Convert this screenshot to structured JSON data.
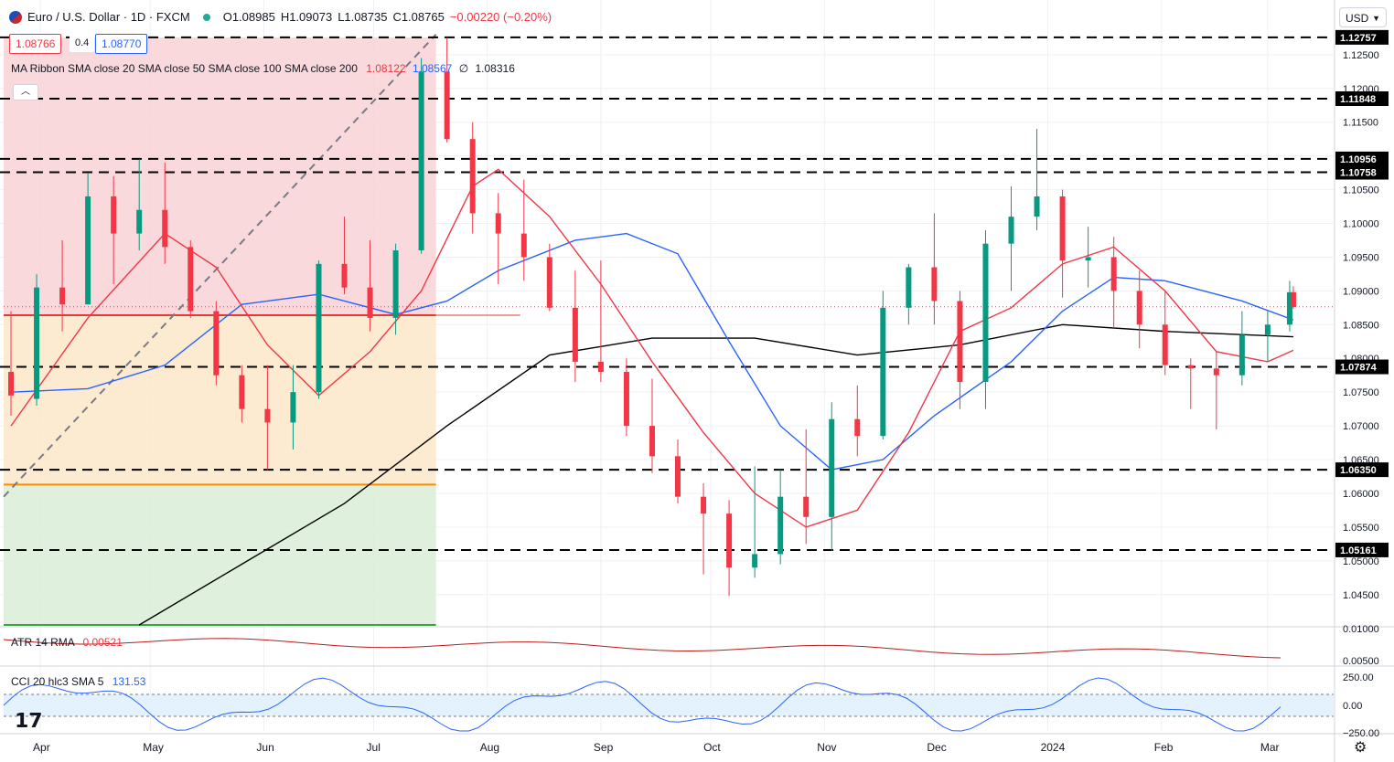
{
  "header": {
    "symbol": "Euro / U.S. Dollar · 1D · FXCM",
    "open": "O1.08985",
    "high": "H1.09073",
    "low": "L1.08735",
    "close": "C1.08765",
    "change": "−0.00220 (−0.20%)"
  },
  "quote": {
    "bid": "1.08766",
    "spread": "0.4",
    "ask": "1.08770"
  },
  "ma_ribbon": {
    "label": "MA Ribbon SMA close 20 SMA close 50 SMA close 100 SMA close 200",
    "v20": "1.08122",
    "v50": "1.08567",
    "v100": "∅",
    "v200": "1.08316"
  },
  "atr": {
    "label": "ATR 14 RMA",
    "value": "0.00521"
  },
  "cci": {
    "label": "CCI 20 hlc3 SMA 5",
    "value": "131.53"
  },
  "currency": "USD",
  "colors": {
    "up": "#089981",
    "down": "#f23645",
    "sma20": "#f23645",
    "sma50": "#2962ff",
    "sma200": "#000000"
  },
  "chart_data": {
    "type": "candlestick",
    "title": "Euro / U.S. Dollar · 1D · FXCM",
    "price_axis": {
      "ticks": [
        "1.12500",
        "1.12000",
        "1.11500",
        "1.11000",
        "1.10500",
        "1.10000",
        "1.09500",
        "1.09000",
        "1.08500",
        "1.08000",
        "1.07500",
        "1.07000",
        "1.06500",
        "1.06000",
        "1.05500",
        "1.05000",
        "1.04500"
      ],
      "range": [
        1.0405,
        1.1285
      ]
    },
    "x_axis": {
      "labels": [
        "Apr",
        "May",
        "Jun",
        "Jul",
        "Aug",
        "Sep",
        "Oct",
        "Nov",
        "Dec",
        "2024",
        "Feb",
        "Mar"
      ],
      "dates": [
        "2023-04-01",
        "2023-05-01",
        "2023-06-01",
        "2023-07-01",
        "2023-08-01",
        "2023-09-01",
        "2023-10-01",
        "2023-11-01",
        "2023-12-01",
        "2024-01-01",
        "2024-02-01",
        "2024-03-01"
      ],
      "range": [
        "2023-03-22",
        "2024-03-19"
      ]
    },
    "horizontal_levels": [
      {
        "value": 1.12757,
        "label": "1.12757"
      },
      {
        "value": 1.11848,
        "label": "1.11848"
      },
      {
        "value": 1.10956,
        "label": "1.10956"
      },
      {
        "value": 1.10758,
        "label": "1.10758"
      },
      {
        "value": 1.07874,
        "label": "1.07874"
      },
      {
        "value": 1.0635,
        "label": "1.06350"
      },
      {
        "value": 1.05161,
        "label": "1.05161"
      }
    ],
    "last_price": 1.08765,
    "fibonacci": {
      "start_date": "2023-03-22",
      "end_date": "2023-07-18",
      "low": 1.0628,
      "high": 1.12757,
      "levels": [
        {
          "value": 1.12757,
          "fill": "#f8d2d6"
        },
        {
          "value": 1.0864,
          "fill": "#fde8c9",
          "line": "#e53935"
        },
        {
          "value": 1.0613,
          "fill": "#d9efd6",
          "line": "#fb8c00"
        },
        {
          "value": 1.0405,
          "line": "#43a047"
        }
      ]
    },
    "trend_line": [
      [
        "2023-03-22",
        1.0595
      ],
      [
        "2023-07-18",
        1.128
      ]
    ],
    "candles": [
      [
        "2023-03-24",
        1.078,
        1.087,
        1.0715,
        1.0745
      ],
      [
        "2023-03-31",
        1.074,
        1.0925,
        1.073,
        1.0905
      ],
      [
        "2023-04-07",
        1.0905,
        1.0975,
        1.084,
        1.088
      ],
      [
        "2023-04-14",
        1.088,
        1.1075,
        1.088,
        1.104
      ],
      [
        "2023-04-21",
        1.104,
        1.107,
        1.091,
        1.0985
      ],
      [
        "2023-04-28",
        1.0985,
        1.1095,
        1.096,
        1.102
      ],
      [
        "2023-05-05",
        1.102,
        1.109,
        1.094,
        1.0965
      ],
      [
        "2023-05-12",
        1.0965,
        1.0975,
        1.086,
        1.087
      ],
      [
        "2023-05-19",
        1.087,
        1.0885,
        1.076,
        1.0775
      ],
      [
        "2023-05-26",
        1.0775,
        1.079,
        1.0705,
        1.0725
      ],
      [
        "2023-06-02",
        1.0725,
        1.079,
        1.0635,
        1.0705
      ],
      [
        "2023-06-09",
        1.0705,
        1.079,
        1.0665,
        1.075
      ],
      [
        "2023-06-16",
        1.075,
        1.0945,
        1.074,
        1.094
      ],
      [
        "2023-06-23",
        1.094,
        1.101,
        1.0895,
        1.0905
      ],
      [
        "2023-06-30",
        1.0905,
        1.0975,
        1.084,
        1.086
      ],
      [
        "2023-07-07",
        1.086,
        1.097,
        1.0835,
        1.096
      ],
      [
        "2023-07-14",
        1.096,
        1.1245,
        1.0955,
        1.1225
      ],
      [
        "2023-07-21",
        1.1225,
        1.1275,
        1.112,
        1.1125
      ],
      [
        "2023-07-28",
        1.1125,
        1.115,
        1.0985,
        1.1015
      ],
      [
        "2023-08-04",
        1.1015,
        1.1045,
        1.091,
        1.0985
      ],
      [
        "2023-08-11",
        1.0985,
        1.1065,
        1.0915,
        1.095
      ],
      [
        "2023-08-18",
        1.095,
        1.097,
        1.087,
        1.0875
      ],
      [
        "2023-08-25",
        1.0875,
        1.093,
        1.0765,
        1.0795
      ],
      [
        "2023-09-01",
        1.0795,
        1.0945,
        1.0765,
        1.078
      ],
      [
        "2023-09-08",
        1.078,
        1.08,
        1.0685,
        1.07
      ],
      [
        "2023-09-15",
        1.07,
        1.077,
        1.063,
        1.0655
      ],
      [
        "2023-09-22",
        1.0655,
        1.068,
        1.0585,
        1.0595
      ],
      [
        "2023-09-29",
        1.0595,
        1.0615,
        1.048,
        1.057
      ],
      [
        "2023-10-06",
        1.057,
        1.059,
        1.0448,
        1.049
      ],
      [
        "2023-10-13",
        1.049,
        1.064,
        1.0475,
        1.051
      ],
      [
        "2023-10-20",
        1.051,
        1.0635,
        1.0495,
        1.0595
      ],
      [
        "2023-10-27",
        1.0595,
        1.0695,
        1.0525,
        1.0565
      ],
      [
        "2023-11-03",
        1.0565,
        1.0735,
        1.0515,
        1.071
      ],
      [
        "2023-11-10",
        1.071,
        1.076,
        1.0655,
        1.0685
      ],
      [
        "2023-11-17",
        1.0685,
        1.09,
        1.068,
        1.0875
      ],
      [
        "2023-11-24",
        1.0875,
        1.094,
        1.085,
        1.0935
      ],
      [
        "2023-12-01",
        1.0935,
        1.1015,
        1.085,
        1.0885
      ],
      [
        "2023-12-08",
        1.0885,
        1.09,
        1.0725,
        1.0765
      ],
      [
        "2023-12-15",
        1.0765,
        1.099,
        1.0725,
        1.097
      ],
      [
        "2023-12-22",
        1.097,
        1.1055,
        1.09,
        1.101
      ],
      [
        "2023-12-29",
        1.101,
        1.114,
        1.099,
        1.104
      ],
      [
        "2024-01-05",
        1.104,
        1.105,
        1.089,
        1.0945
      ],
      [
        "2024-01-12",
        1.0945,
        1.0995,
        1.0905,
        1.095
      ],
      [
        "2024-01-19",
        1.095,
        1.098,
        1.0845,
        1.09
      ],
      [
        "2024-01-26",
        1.09,
        1.093,
        1.0815,
        1.085
      ],
      [
        "2024-02-02",
        1.085,
        1.09,
        1.0775,
        1.079
      ],
      [
        "2024-02-09",
        1.079,
        1.08,
        1.0725,
        1.0785
      ],
      [
        "2024-02-16",
        1.0785,
        1.081,
        1.0695,
        1.0775
      ],
      [
        "2024-02-23",
        1.0775,
        1.087,
        1.076,
        1.0835
      ],
      [
        "2024-03-01",
        1.0835,
        1.087,
        1.0795,
        1.085
      ],
      [
        "2024-03-07",
        1.085,
        1.0915,
        1.084,
        1.0898
      ],
      [
        "2024-03-08",
        1.0898,
        1.0907,
        1.0873,
        1.0876
      ]
    ],
    "sma20": [
      [
        "2023-03-24",
        1.07
      ],
      [
        "2023-04-14",
        1.086
      ],
      [
        "2023-05-05",
        1.0985
      ],
      [
        "2023-05-19",
        1.0935
      ],
      [
        "2023-06-02",
        1.082
      ],
      [
        "2023-06-16",
        1.0745
      ],
      [
        "2023-06-30",
        1.081
      ],
      [
        "2023-07-14",
        1.09
      ],
      [
        "2023-07-28",
        1.1055
      ],
      [
        "2023-08-04",
        1.108
      ],
      [
        "2023-08-18",
        1.101
      ],
      [
        "2023-09-01",
        1.091
      ],
      [
        "2023-09-15",
        1.0795
      ],
      [
        "2023-09-29",
        1.069
      ],
      [
        "2023-10-13",
        1.06
      ],
      [
        "2023-10-27",
        1.055
      ],
      [
        "2023-11-10",
        1.0575
      ],
      [
        "2023-11-24",
        1.069
      ],
      [
        "2023-12-08",
        1.084
      ],
      [
        "2023-12-22",
        1.0875
      ],
      [
        "2024-01-05",
        1.094
      ],
      [
        "2024-01-19",
        1.0965
      ],
      [
        "2024-02-02",
        1.09
      ],
      [
        "2024-02-16",
        1.081
      ],
      [
        "2024-03-01",
        1.0795
      ],
      [
        "2024-03-08",
        1.0812
      ]
    ],
    "sma50": [
      [
        "2023-03-24",
        1.075
      ],
      [
        "2023-04-14",
        1.0755
      ],
      [
        "2023-05-05",
        1.079
      ],
      [
        "2023-05-26",
        1.088
      ],
      [
        "2023-06-16",
        1.0895
      ],
      [
        "2023-07-07",
        1.0865
      ],
      [
        "2023-07-21",
        1.0885
      ],
      [
        "2023-08-04",
        1.093
      ],
      [
        "2023-08-25",
        1.0975
      ],
      [
        "2023-09-08",
        1.0985
      ],
      [
        "2023-09-22",
        1.0955
      ],
      [
        "2023-10-06",
        1.0825
      ],
      [
        "2023-10-20",
        1.07
      ],
      [
        "2023-11-03",
        1.0635
      ],
      [
        "2023-11-17",
        1.065
      ],
      [
        "2023-12-01",
        1.0715
      ],
      [
        "2023-12-22",
        1.0795
      ],
      [
        "2024-01-05",
        1.087
      ],
      [
        "2024-01-19",
        1.092
      ],
      [
        "2024-02-02",
        1.0915
      ],
      [
        "2024-02-23",
        1.0885
      ],
      [
        "2024-03-08",
        1.0857
      ]
    ],
    "sma200": [
      [
        "2023-04-28",
        1.0405
      ],
      [
        "2023-05-26",
        1.0495
      ],
      [
        "2023-06-23",
        1.0585
      ],
      [
        "2023-07-21",
        1.07
      ],
      [
        "2023-08-18",
        1.0805
      ],
      [
        "2023-09-15",
        1.083
      ],
      [
        "2023-10-13",
        1.083
      ],
      [
        "2023-11-10",
        1.0805
      ],
      [
        "2023-12-08",
        1.082
      ],
      [
        "2024-01-05",
        1.085
      ],
      [
        "2024-02-02",
        1.084
      ],
      [
        "2024-03-08",
        1.0832
      ]
    ]
  },
  "atr_axis": {
    "ticks": [
      "0.01000",
      "0.00500"
    ]
  },
  "cci_axis": {
    "ticks": [
      "250.00",
      "0.00",
      "−250.00"
    ]
  }
}
